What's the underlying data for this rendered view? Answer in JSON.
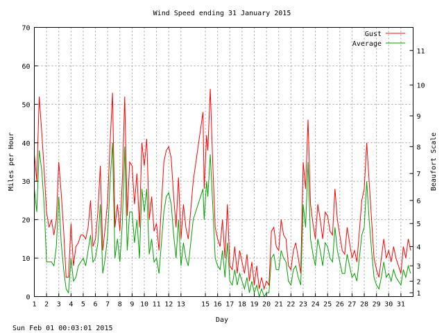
{
  "chart_data": {
    "type": "line",
    "title": "Wind Speed ending 31 January 2015",
    "xlabel": "Day",
    "ylabel": "Miles per Hour",
    "y2label": "Beaufort Scale",
    "footer": "Sun Feb 01 00:03:01 2015",
    "xlim": [
      1,
      32
    ],
    "ylim": [
      0,
      70
    ],
    "x_ticks": [
      "1",
      "2",
      "3",
      "4",
      "5",
      "6",
      "7",
      "8",
      "9",
      "10",
      "11",
      "12",
      "13",
      "15",
      "16",
      "17",
      "18",
      "19",
      "20",
      "21",
      "22",
      "23",
      "24",
      "25",
      "26",
      "27",
      "28",
      "29",
      "30",
      "31"
    ],
    "y_ticks": [
      0,
      10,
      20,
      30,
      40,
      50,
      60,
      70
    ],
    "beaufort_ticks": [
      {
        "label": "1",
        "mph": 1
      },
      {
        "label": "2",
        "mph": 4
      },
      {
        "label": "3",
        "mph": 8
      },
      {
        "label": "4",
        "mph": 13
      },
      {
        "label": "5",
        "mph": 19
      },
      {
        "label": "6",
        "mph": 25
      },
      {
        "label": "7",
        "mph": 32
      },
      {
        "label": "8",
        "mph": 39
      },
      {
        "label": "9",
        "mph": 47
      },
      {
        "label": "10",
        "mph": 55
      },
      {
        "label": "11",
        "mph": 64
      }
    ],
    "grid": true,
    "legend_position": "top-right",
    "series": [
      {
        "name": "Gust",
        "color": "#ff0000",
        "points": [
          [
            1.0,
            37
          ],
          [
            1.2,
            30
          ],
          [
            1.4,
            52
          ],
          [
            1.6,
            43
          ],
          [
            1.8,
            33
          ],
          [
            2.0,
            22
          ],
          [
            2.2,
            18
          ],
          [
            2.4,
            20
          ],
          [
            2.6,
            16
          ],
          [
            2.8,
            20
          ],
          [
            3.0,
            35
          ],
          [
            3.2,
            27
          ],
          [
            3.4,
            17
          ],
          [
            3.6,
            5
          ],
          [
            3.8,
            5
          ],
          [
            4.0,
            19
          ],
          [
            4.2,
            8
          ],
          [
            4.4,
            13
          ],
          [
            4.6,
            14
          ],
          [
            4.8,
            16
          ],
          [
            5.0,
            16
          ],
          [
            5.2,
            15
          ],
          [
            5.4,
            18
          ],
          [
            5.6,
            25
          ],
          [
            5.8,
            13
          ],
          [
            6.0,
            15
          ],
          [
            6.2,
            22
          ],
          [
            6.4,
            34
          ],
          [
            6.6,
            12
          ],
          [
            6.8,
            18
          ],
          [
            7.0,
            25
          ],
          [
            7.2,
            40
          ],
          [
            7.4,
            53
          ],
          [
            7.6,
            18
          ],
          [
            7.8,
            24
          ],
          [
            8.0,
            17
          ],
          [
            8.2,
            30
          ],
          [
            8.4,
            52
          ],
          [
            8.6,
            21
          ],
          [
            8.8,
            35
          ],
          [
            9.0,
            34
          ],
          [
            9.2,
            24
          ],
          [
            9.4,
            32
          ],
          [
            9.6,
            18
          ],
          [
            9.8,
            40
          ],
          [
            10.0,
            34
          ],
          [
            10.2,
            41
          ],
          [
            10.4,
            20
          ],
          [
            10.6,
            26
          ],
          [
            10.8,
            17
          ],
          [
            11.0,
            19
          ],
          [
            11.2,
            12
          ],
          [
            11.4,
            24
          ],
          [
            11.6,
            35
          ],
          [
            11.8,
            38
          ],
          [
            12.0,
            39
          ],
          [
            12.2,
            36
          ],
          [
            12.4,
            26
          ],
          [
            12.6,
            18
          ],
          [
            12.8,
            31
          ],
          [
            13.0,
            15
          ],
          [
            13.2,
            24
          ],
          [
            13.4,
            18
          ],
          [
            13.6,
            15
          ],
          [
            14.0,
            30
          ],
          [
            14.8,
            48
          ],
          [
            14.9,
            28
          ],
          [
            15.1,
            42
          ],
          [
            15.2,
            38
          ],
          [
            15.4,
            54
          ],
          [
            15.6,
            35
          ],
          [
            15.8,
            18
          ],
          [
            16.0,
            15
          ],
          [
            16.2,
            13
          ],
          [
            16.4,
            20
          ],
          [
            16.6,
            10
          ],
          [
            16.8,
            24
          ],
          [
            17.0,
            8
          ],
          [
            17.2,
            7
          ],
          [
            17.4,
            13
          ],
          [
            17.6,
            6
          ],
          [
            17.8,
            12
          ],
          [
            18.0,
            9
          ],
          [
            18.2,
            6
          ],
          [
            18.4,
            11
          ],
          [
            18.6,
            4
          ],
          [
            18.8,
            9
          ],
          [
            19.0,
            3
          ],
          [
            19.2,
            8
          ],
          [
            19.4,
            2
          ],
          [
            19.6,
            5
          ],
          [
            19.8,
            2
          ],
          [
            20.0,
            4
          ],
          [
            20.2,
            3
          ],
          [
            20.4,
            17
          ],
          [
            20.6,
            18
          ],
          [
            20.8,
            13
          ],
          [
            21.0,
            12
          ],
          [
            21.2,
            20
          ],
          [
            21.4,
            16
          ],
          [
            21.6,
            15
          ],
          [
            21.8,
            8
          ],
          [
            22.0,
            7
          ],
          [
            22.2,
            12
          ],
          [
            22.4,
            14
          ],
          [
            22.6,
            10
          ],
          [
            22.8,
            6
          ],
          [
            23.0,
            35
          ],
          [
            23.2,
            28
          ],
          [
            23.4,
            46
          ],
          [
            23.6,
            24
          ],
          [
            23.8,
            19
          ],
          [
            24.0,
            15
          ],
          [
            24.2,
            24
          ],
          [
            24.4,
            20
          ],
          [
            24.6,
            15
          ],
          [
            24.8,
            22
          ],
          [
            25.0,
            21
          ],
          [
            25.2,
            17
          ],
          [
            25.4,
            16
          ],
          [
            25.6,
            28
          ],
          [
            25.8,
            20
          ],
          [
            26.0,
            16
          ],
          [
            26.2,
            12
          ],
          [
            26.4,
            11
          ],
          [
            26.6,
            18
          ],
          [
            26.8,
            14
          ],
          [
            27.0,
            10
          ],
          [
            27.2,
            12
          ],
          [
            27.4,
            9
          ],
          [
            27.6,
            17
          ],
          [
            27.8,
            25
          ],
          [
            28.0,
            28
          ],
          [
            28.2,
            40
          ],
          [
            28.4,
            30
          ],
          [
            28.6,
            20
          ],
          [
            28.8,
            10
          ],
          [
            29.0,
            7
          ],
          [
            29.2,
            5
          ],
          [
            29.4,
            10
          ],
          [
            29.6,
            15
          ],
          [
            29.8,
            10
          ],
          [
            30.0,
            12
          ],
          [
            30.2,
            9
          ],
          [
            30.4,
            13
          ],
          [
            30.6,
            10
          ],
          [
            30.8,
            8
          ],
          [
            31.0,
            6
          ],
          [
            31.2,
            13
          ],
          [
            31.4,
            10
          ],
          [
            31.6,
            15
          ],
          [
            31.8,
            12
          ]
        ]
      },
      {
        "name": "Average",
        "color": "#00a000",
        "points": [
          [
            1.0,
            28
          ],
          [
            1.2,
            22
          ],
          [
            1.4,
            38
          ],
          [
            1.6,
            33
          ],
          [
            1.8,
            24
          ],
          [
            2.0,
            9
          ],
          [
            2.2,
            9
          ],
          [
            2.4,
            9
          ],
          [
            2.6,
            8
          ],
          [
            2.8,
            13
          ],
          [
            3.0,
            26
          ],
          [
            3.2,
            14
          ],
          [
            3.4,
            7
          ],
          [
            3.6,
            2
          ],
          [
            3.8,
            1
          ],
          [
            4.0,
            10
          ],
          [
            4.2,
            4
          ],
          [
            4.4,
            5
          ],
          [
            4.6,
            8
          ],
          [
            4.8,
            9
          ],
          [
            5.0,
            10
          ],
          [
            5.2,
            8
          ],
          [
            5.4,
            12
          ],
          [
            5.6,
            16
          ],
          [
            5.8,
            9
          ],
          [
            6.0,
            10
          ],
          [
            6.2,
            14
          ],
          [
            6.4,
            24
          ],
          [
            6.6,
            6
          ],
          [
            6.8,
            10
          ],
          [
            7.0,
            16
          ],
          [
            7.2,
            30
          ],
          [
            7.4,
            40
          ],
          [
            7.6,
            10
          ],
          [
            7.8,
            15
          ],
          [
            8.0,
            9
          ],
          [
            8.2,
            19
          ],
          [
            8.4,
            39
          ],
          [
            8.6,
            12
          ],
          [
            8.8,
            22
          ],
          [
            9.0,
            22
          ],
          [
            9.2,
            14
          ],
          [
            9.4,
            20
          ],
          [
            9.6,
            10
          ],
          [
            9.8,
            28
          ],
          [
            10.0,
            22
          ],
          [
            10.2,
            28
          ],
          [
            10.4,
            11
          ],
          [
            10.6,
            15
          ],
          [
            10.8,
            9
          ],
          [
            11.0,
            10
          ],
          [
            11.2,
            6
          ],
          [
            11.4,
            14
          ],
          [
            11.6,
            22
          ],
          [
            11.8,
            26
          ],
          [
            12.0,
            27
          ],
          [
            12.2,
            24
          ],
          [
            12.4,
            16
          ],
          [
            12.6,
            10
          ],
          [
            12.8,
            20
          ],
          [
            13.0,
            8
          ],
          [
            13.2,
            14
          ],
          [
            13.4,
            10
          ],
          [
            13.6,
            8
          ],
          [
            14.0,
            20
          ],
          [
            14.8,
            28
          ],
          [
            14.9,
            20
          ],
          [
            15.1,
            30
          ],
          [
            15.2,
            26
          ],
          [
            15.4,
            37
          ],
          [
            15.6,
            24
          ],
          [
            15.8,
            10
          ],
          [
            16.0,
            8
          ],
          [
            16.2,
            7
          ],
          [
            16.4,
            12
          ],
          [
            16.6,
            5
          ],
          [
            16.8,
            14
          ],
          [
            17.0,
            4
          ],
          [
            17.2,
            3
          ],
          [
            17.4,
            7
          ],
          [
            17.6,
            3
          ],
          [
            17.8,
            6
          ],
          [
            18.0,
            4
          ],
          [
            18.2,
            2
          ],
          [
            18.4,
            5
          ],
          [
            18.6,
            1
          ],
          [
            18.8,
            4
          ],
          [
            19.0,
            1
          ],
          [
            19.2,
            3
          ],
          [
            19.4,
            0
          ],
          [
            19.6,
            2
          ],
          [
            19.8,
            0
          ],
          [
            20.0,
            1
          ],
          [
            20.2,
            1
          ],
          [
            20.4,
            10
          ],
          [
            20.6,
            11
          ],
          [
            20.8,
            7
          ],
          [
            21.0,
            7
          ],
          [
            21.2,
            12
          ],
          [
            21.4,
            10
          ],
          [
            21.6,
            9
          ],
          [
            21.8,
            4
          ],
          [
            22.0,
            3
          ],
          [
            22.2,
            7
          ],
          [
            22.4,
            8
          ],
          [
            22.6,
            5
          ],
          [
            22.8,
            3
          ],
          [
            23.0,
            24
          ],
          [
            23.2,
            18
          ],
          [
            23.4,
            35
          ],
          [
            23.6,
            15
          ],
          [
            23.8,
            11
          ],
          [
            24.0,
            8
          ],
          [
            24.2,
            15
          ],
          [
            24.4,
            12
          ],
          [
            24.6,
            8
          ],
          [
            24.8,
            14
          ],
          [
            25.0,
            13
          ],
          [
            25.2,
            10
          ],
          [
            25.4,
            9
          ],
          [
            25.6,
            18
          ],
          [
            25.8,
            12
          ],
          [
            26.0,
            9
          ],
          [
            26.2,
            6
          ],
          [
            26.4,
            6
          ],
          [
            26.6,
            11
          ],
          [
            26.8,
            8
          ],
          [
            27.0,
            5
          ],
          [
            27.2,
            6
          ],
          [
            27.4,
            4
          ],
          [
            27.6,
            10
          ],
          [
            27.8,
            16
          ],
          [
            28.0,
            18
          ],
          [
            28.2,
            30
          ],
          [
            28.4,
            20
          ],
          [
            28.6,
            12
          ],
          [
            28.8,
            5
          ],
          [
            29.0,
            3
          ],
          [
            29.2,
            2
          ],
          [
            29.4,
            5
          ],
          [
            29.6,
            9
          ],
          [
            29.8,
            5
          ],
          [
            30.0,
            6
          ],
          [
            30.2,
            4
          ],
          [
            30.4,
            7
          ],
          [
            30.6,
            5
          ],
          [
            30.8,
            4
          ],
          [
            31.0,
            3
          ],
          [
            31.2,
            7
          ],
          [
            31.4,
            5
          ],
          [
            31.6,
            8
          ],
          [
            31.8,
            6
          ]
        ]
      }
    ]
  }
}
